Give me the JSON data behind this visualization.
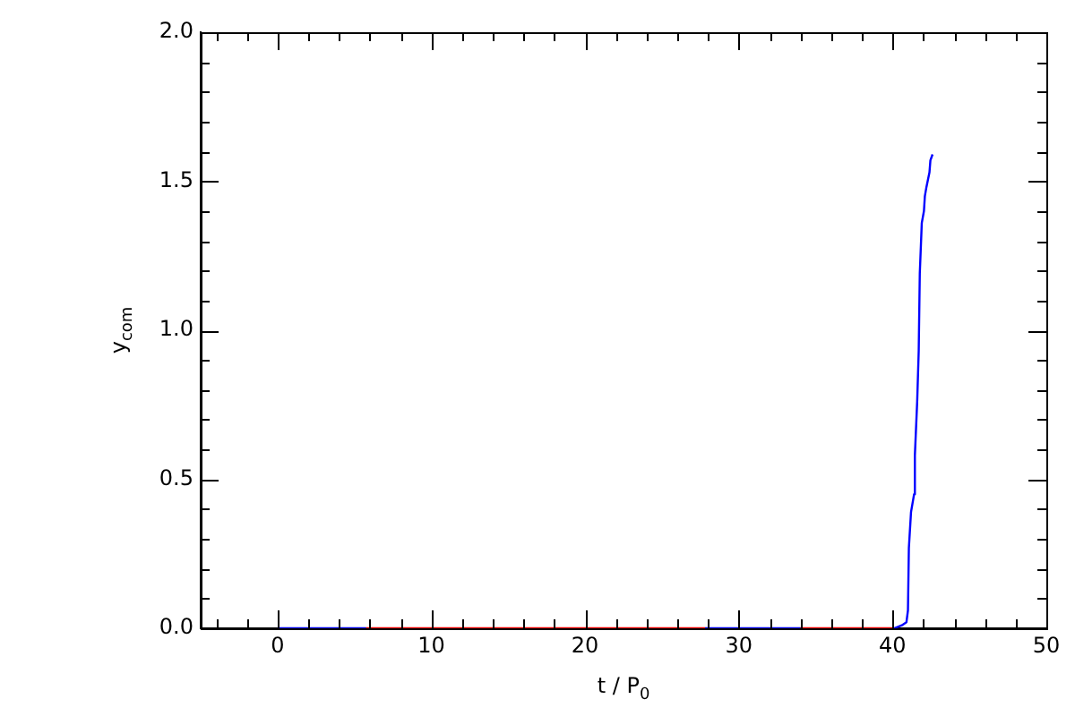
{
  "chart_data": {
    "type": "line",
    "xlabel": "t / P$_{0}$",
    "ylabel": "y$_{com}$",
    "xlim": [
      -5,
      50
    ],
    "xticks": [
      {
        "value": -4,
        "label": null
      },
      {
        "value": -2,
        "label": null
      },
      0,
      {
        "value": 2,
        "label": null
      },
      {
        "value": 4,
        "label": null
      },
      {
        "value": 6,
        "label": null
      },
      {
        "value": 8,
        "label": null
      },
      10,
      {
        "value": 12,
        "label": null
      },
      {
        "value": 14,
        "label": null
      },
      {
        "value": 16,
        "label": null
      },
      {
        "value": 18,
        "label": null
      },
      20,
      {
        "value": 22,
        "label": null
      },
      {
        "value": 24,
        "label": null
      },
      {
        "value": 26,
        "label": null
      },
      {
        "value": 28,
        "label": null
      },
      30,
      {
        "value": 32,
        "label": null
      },
      {
        "value": 34,
        "label": null
      },
      {
        "value": 36,
        "label": null
      },
      {
        "value": 38,
        "label": null
      },
      40,
      {
        "value": 42,
        "label": null
      },
      {
        "value": 44,
        "label": null
      },
      {
        "value": 46,
        "label": null
      },
      {
        "value": 48,
        "label": null
      },
      50
    ],
    "ylim": [
      0,
      2
    ],
    "yticks": [
      {
        "value": 0,
        "label": "0.0"
      },
      {
        "value": 0.1,
        "label": null
      },
      {
        "value": 0.2,
        "label": null
      },
      {
        "value": 0.3,
        "label": null
      },
      {
        "value": 0.4,
        "label": null
      },
      0.5,
      {
        "value": 0.6,
        "label": null
      },
      {
        "value": 0.7,
        "label": null
      },
      {
        "value": 0.8,
        "label": null
      },
      {
        "value": 0.9,
        "label": null
      },
      {
        "value": 1,
        "label": "1.0"
      },
      {
        "value": 1.1,
        "label": null
      },
      {
        "value": 1.2,
        "label": null
      },
      {
        "value": 1.3,
        "label": null
      },
      {
        "value": 1.4,
        "label": null
      },
      1.5,
      {
        "value": 1.6,
        "label": null
      },
      {
        "value": 1.7,
        "label": null
      },
      {
        "value": 1.8,
        "label": null
      },
      {
        "value": 1.9,
        "label": null
      },
      {
        "value": 2,
        "label": "2.0"
      }
    ],
    "grid": false,
    "legend": false,
    "marker": "none",
    "line_style": "solid",
    "series": [
      {
        "color": "#0000ff",
        "x": [
          0,
          5.75,
          6.0,
          27.8,
          34.0,
          34.5,
          40.1,
          40.6,
          40.9,
          41.0,
          41.06,
          41.2,
          41.4,
          41.45,
          41.6,
          41.7,
          41.77,
          41.9,
          42.04,
          42.1,
          42.2,
          42.4,
          42.46,
          42.6
        ],
        "values": [
          0,
          0,
          null,
          0,
          0,
          null,
          0,
          0.01,
          0.02,
          0.06,
          0.27,
          0.39,
          0.45,
          0.58,
          0.76,
          0.93,
          1.19,
          1.36,
          1.4,
          1.45,
          1.48,
          1.53,
          1.57,
          1.59
        ]
      },
      {
        "color": "#ff0000",
        "x": [
          5.75,
          27.8,
          30,
          34.0,
          40.1
        ],
        "values": [
          0,
          0,
          null,
          0,
          0
        ]
      }
    ]
  }
}
